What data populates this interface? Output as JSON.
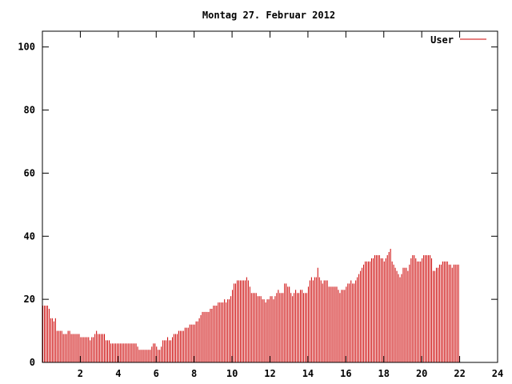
{
  "chart_data": {
    "type": "bar",
    "title": "Montag 27. Februar 2012",
    "xlabel": "",
    "ylabel": "",
    "xlim": [
      0,
      24
    ],
    "ylim": [
      0,
      105
    ],
    "x_ticks": [
      2,
      4,
      6,
      8,
      10,
      12,
      14,
      16,
      18,
      20,
      22,
      24
    ],
    "y_ticks": [
      0,
      20,
      40,
      60,
      80,
      100
    ],
    "grid": false,
    "legend_position": "top-right",
    "series": [
      {
        "name": "User",
        "color": "#cc0000",
        "bin_minutes": 5,
        "values": [
          18,
          18,
          18,
          18,
          17,
          14,
          14,
          13,
          14,
          10,
          10,
          10,
          10,
          9,
          9,
          9,
          10,
          10,
          9,
          9,
          9,
          9,
          9,
          9,
          8,
          8,
          8,
          8,
          8,
          8,
          7,
          8,
          8,
          9,
          10,
          9,
          9,
          9,
          9,
          9,
          7,
          7,
          7,
          6,
          6,
          6,
          6,
          6,
          6,
          6,
          6,
          6,
          6,
          6,
          6,
          6,
          6,
          6,
          6,
          6,
          5,
          4,
          4,
          4,
          4,
          4,
          4,
          4,
          4,
          5,
          6,
          6,
          5,
          4,
          4,
          5,
          7,
          7,
          7,
          8,
          7,
          7,
          8,
          9,
          9,
          9,
          10,
          10,
          10,
          10,
          11,
          11,
          11,
          12,
          12,
          12,
          12,
          13,
          13,
          14,
          15,
          16,
          16,
          16,
          16,
          16,
          17,
          17,
          18,
          18,
          18,
          19,
          19,
          19,
          19,
          20,
          19,
          20,
          20,
          21,
          23,
          25,
          25,
          26,
          26,
          26,
          26,
          26,
          26,
          27,
          26,
          24,
          22,
          22,
          22,
          22,
          21,
          21,
          21,
          20,
          20,
          19,
          20,
          20,
          21,
          21,
          20,
          21,
          22,
          23,
          22,
          22,
          22,
          25,
          25,
          24,
          24,
          22,
          21,
          22,
          23,
          22,
          22,
          23,
          23,
          22,
          22,
          22,
          24,
          26,
          27,
          26,
          27,
          27,
          30,
          27,
          26,
          25,
          26,
          26,
          26,
          24,
          24,
          24,
          24,
          24,
          24,
          23,
          22,
          23,
          23,
          23,
          24,
          25,
          25,
          26,
          25,
          25,
          26,
          27,
          28,
          29,
          30,
          31,
          32,
          32,
          32,
          32,
          33,
          33,
          34,
          34,
          34,
          34,
          33,
          33,
          32,
          33,
          34,
          35,
          36,
          32,
          31,
          30,
          29,
          28,
          27,
          28,
          30,
          30,
          30,
          29,
          31,
          33,
          34,
          34,
          33,
          32,
          32,
          32,
          33,
          34,
          34,
          34,
          34,
          34,
          33,
          29,
          29,
          30,
          30,
          31,
          31,
          32,
          32,
          32,
          32,
          31,
          31,
          30,
          31,
          31,
          31,
          31
        ]
      }
    ]
  }
}
